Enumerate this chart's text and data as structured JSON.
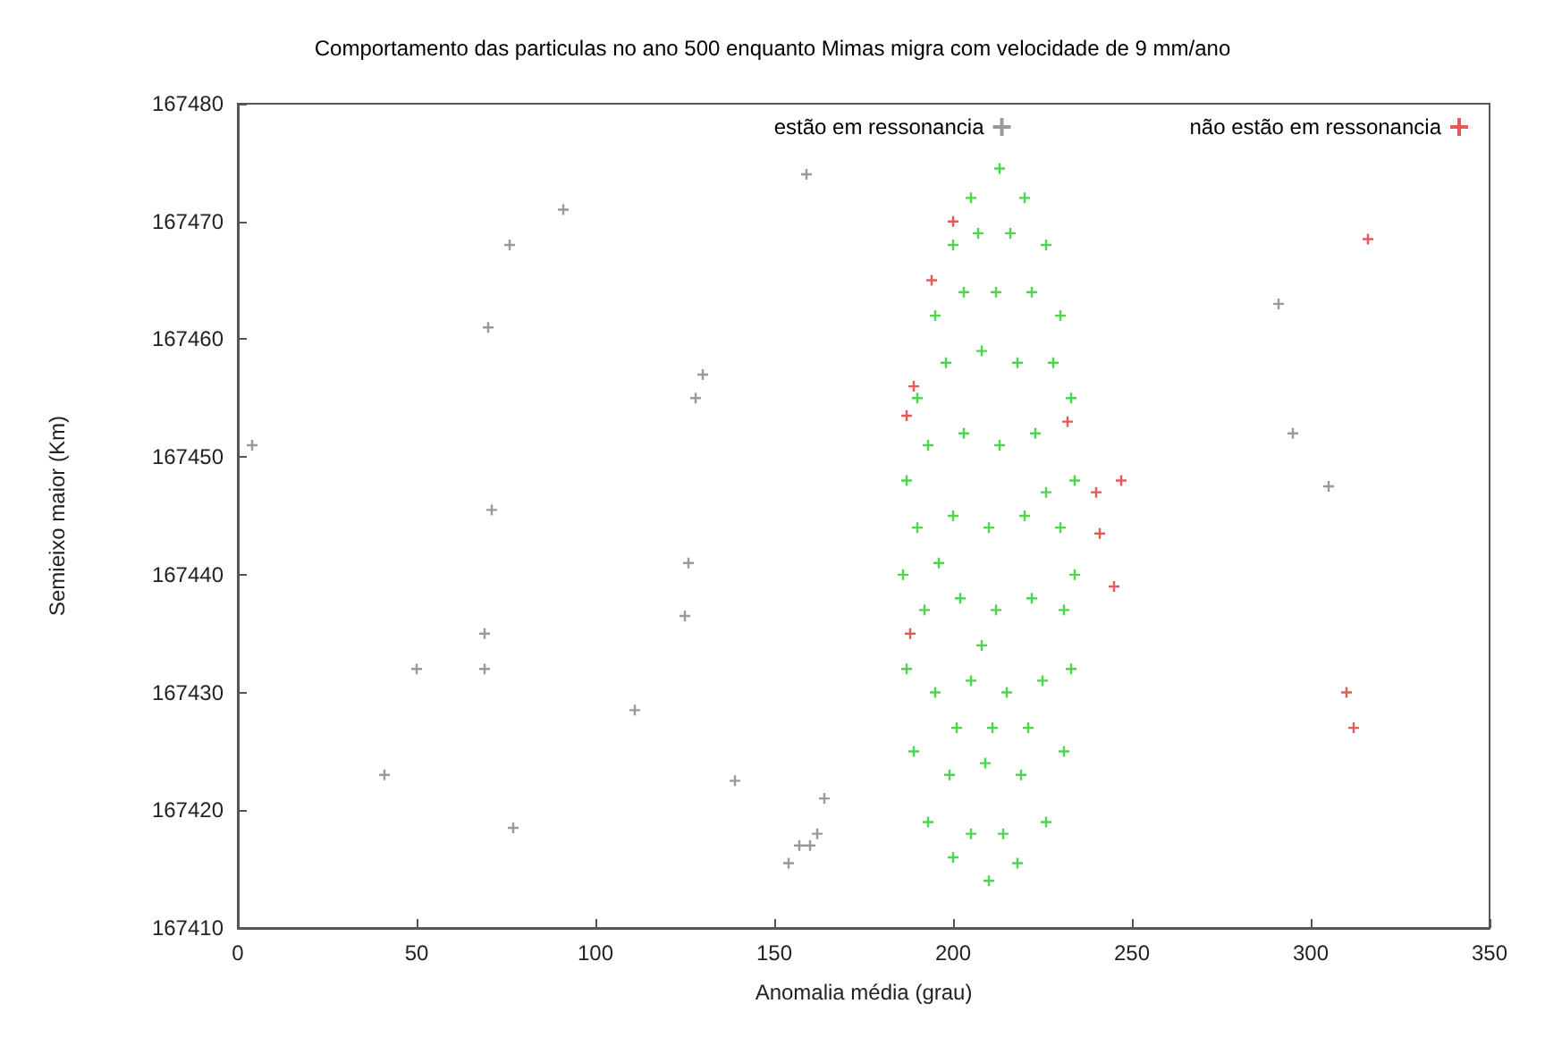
{
  "chart_data": {
    "type": "scatter",
    "title": "Comportamento das particulas no ano 500 enquanto Mimas migra com velocidade de 9 mm/ano",
    "xlabel": "Anomalia média (grau)",
    "ylabel": "Semieixo maior (Km)",
    "xlim": [
      0,
      350
    ],
    "xticks": [
      0,
      50,
      100,
      150,
      200,
      250,
      300,
      350
    ],
    "ylim": [
      167410,
      167480
    ],
    "yticks": [
      167410,
      167420,
      167430,
      167440,
      167450,
      167460,
      167470,
      167480
    ],
    "grid": false,
    "legend": "top right",
    "marker": "cross",
    "series": [
      {
        "name": "estão em ressonancia",
        "color": "#808080",
        "x": [
          4,
          41,
          50,
          69,
          69,
          70,
          71,
          76,
          77,
          91,
          111,
          126,
          125,
          128,
          130,
          139,
          154,
          157,
          160,
          162,
          164,
          159,
          291,
          295,
          305
        ],
        "values": [
          167451,
          167423,
          167432,
          167435,
          167432,
          167461,
          167445.5,
          167468,
          167418.5,
          167471,
          167428.5,
          167441,
          167436.5,
          167455,
          167457,
          167422.5,
          167415.5,
          167417,
          167417,
          167418,
          167421,
          167474,
          167463,
          167452,
          167447.5
        ]
      },
      {
        "name": "não estão em ressonancia",
        "color": "#e03030",
        "x": [
          187,
          189,
          194,
          200,
          232,
          240,
          241,
          247,
          245,
          188,
          310,
          312,
          316
        ],
        "values": [
          167453.5,
          167456,
          167465,
          167470,
          167453,
          167447,
          167443.5,
          167448,
          167439,
          167435,
          167430,
          167427,
          167468.5
        ]
      },
      {
        "color": "#22cc22",
        "x": [
          213,
          205,
          220,
          200,
          226,
          195,
          230,
          190,
          233,
          187,
          234,
          186,
          234,
          187,
          233,
          189,
          231,
          193,
          226,
          200,
          218,
          210,
          207,
          216,
          203,
          212,
          222,
          198,
          208,
          218,
          228,
          193,
          203,
          213,
          223,
          190,
          200,
          210,
          220,
          230,
          192,
          202,
          212,
          222,
          231,
          195,
          205,
          215,
          225,
          199,
          209,
          219,
          205,
          214,
          201,
          211,
          221,
          208,
          196,
          226
        ],
        "values": [
          167474.5,
          167472,
          167472,
          167468,
          167468,
          167462,
          167462,
          167455,
          167455,
          167448,
          167448,
          167440,
          167440,
          167432,
          167432,
          167425,
          167425,
          167419,
          167419,
          167416,
          167415.5,
          167414,
          167469,
          167469,
          167464,
          167464,
          167464,
          167458,
          167459,
          167458,
          167458,
          167451,
          167452,
          167451,
          167452,
          167444,
          167445,
          167444,
          167445,
          167444,
          167437,
          167438,
          167437,
          167438,
          167437,
          167430,
          167431,
          167430,
          167431,
          167423,
          167424,
          167423,
          167418,
          167418,
          167427,
          167427,
          167427,
          167434,
          167441,
          167447
        ]
      }
    ]
  }
}
